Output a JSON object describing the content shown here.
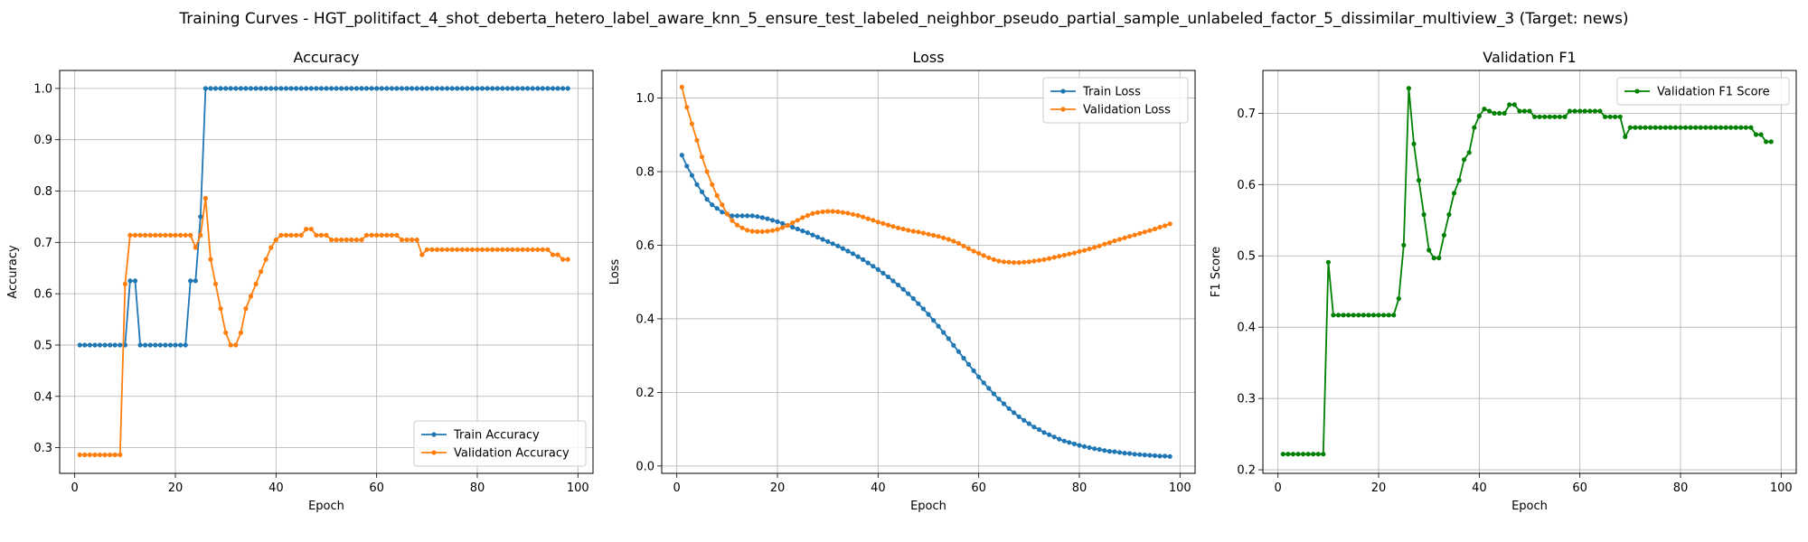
{
  "suptitle": "Training Curves - HGT_politifact_4_shot_deberta_hetero_label_aware_knn_5_ensure_test_labeled_neighbor_pseudo_partial_sample_unlabeled_factor_5_dissimilar_multiview_3 (Target: news)",
  "colors": {
    "train": "#1f77b4",
    "validation": "#ff7f0e",
    "f1": "#008000",
    "grid": "#b0b0b0"
  },
  "chart_data": [
    {
      "type": "line",
      "title": "Accuracy",
      "xlabel": "Epoch",
      "ylabel": "Accuracy",
      "xlim": [
        -3,
        103
      ],
      "ylim": [
        0.25,
        1.035
      ],
      "xticks": [
        0,
        20,
        40,
        60,
        80,
        100
      ],
      "xtick_labels": [
        "0",
        "20",
        "40",
        "60",
        "80",
        "100"
      ],
      "yticks": [
        0.3,
        0.4,
        0.5,
        0.6,
        0.7,
        0.8,
        0.9,
        1.0
      ],
      "ytick_labels": [
        "0.3",
        "0.4",
        "0.5",
        "0.6",
        "0.7",
        "0.8",
        "0.9",
        "1.0"
      ],
      "grid": true,
      "legend": "lower-right",
      "series": [
        {
          "name": "Train Accuracy",
          "color": "#1f77b4",
          "x_start": 1,
          "values": [
            0.5,
            0.5,
            0.5,
            0.5,
            0.5,
            0.5,
            0.5,
            0.5,
            0.5,
            0.5,
            0.625,
            0.625,
            0.5,
            0.5,
            0.5,
            0.5,
            0.5,
            0.5,
            0.5,
            0.5,
            0.5,
            0.5,
            0.625,
            0.625,
            0.75,
            1.0,
            1.0,
            1.0,
            1.0,
            1.0,
            1.0,
            1.0,
            1.0,
            1.0,
            1.0,
            1.0,
            1.0,
            1.0,
            1.0,
            1.0,
            1.0,
            1.0,
            1.0,
            1.0,
            1.0,
            1.0,
            1.0,
            1.0,
            1.0,
            1.0,
            1.0,
            1.0,
            1.0,
            1.0,
            1.0,
            1.0,
            1.0,
            1.0,
            1.0,
            1.0,
            1.0,
            1.0,
            1.0,
            1.0,
            1.0,
            1.0,
            1.0,
            1.0,
            1.0,
            1.0,
            1.0,
            1.0,
            1.0,
            1.0,
            1.0,
            1.0,
            1.0,
            1.0,
            1.0,
            1.0,
            1.0,
            1.0,
            1.0,
            1.0,
            1.0,
            1.0,
            1.0,
            1.0,
            1.0,
            1.0,
            1.0,
            1.0,
            1.0,
            1.0,
            1.0,
            1.0,
            1.0,
            1.0
          ]
        },
        {
          "name": "Validation Accuracy",
          "color": "#ff7f0e",
          "x_start": 1,
          "values": [
            0.286,
            0.286,
            0.286,
            0.286,
            0.286,
            0.286,
            0.286,
            0.286,
            0.286,
            0.619,
            0.714,
            0.714,
            0.714,
            0.714,
            0.714,
            0.714,
            0.714,
            0.714,
            0.714,
            0.714,
            0.714,
            0.714,
            0.714,
            0.69,
            0.714,
            0.786,
            0.667,
            0.619,
            0.571,
            0.524,
            0.5,
            0.5,
            0.524,
            0.571,
            0.595,
            0.619,
            0.643,
            0.667,
            0.69,
            0.705,
            0.714,
            0.714,
            0.714,
            0.714,
            0.714,
            0.726,
            0.726,
            0.714,
            0.714,
            0.714,
            0.705,
            0.705,
            0.705,
            0.705,
            0.705,
            0.705,
            0.705,
            0.714,
            0.714,
            0.714,
            0.714,
            0.714,
            0.714,
            0.714,
            0.705,
            0.705,
            0.705,
            0.705,
            0.676,
            0.686,
            0.686,
            0.686,
            0.686,
            0.686,
            0.686,
            0.686,
            0.686,
            0.686,
            0.686,
            0.686,
            0.686,
            0.686,
            0.686,
            0.686,
            0.686,
            0.686,
            0.686,
            0.686,
            0.686,
            0.686,
            0.686,
            0.686,
            0.686,
            0.686,
            0.676,
            0.676,
            0.667,
            0.667
          ]
        }
      ]
    },
    {
      "type": "line",
      "title": "Loss",
      "xlabel": "Epoch",
      "ylabel": "Loss",
      "xlim": [
        -3,
        103
      ],
      "ylim": [
        -0.02,
        1.075
      ],
      "xticks": [
        0,
        20,
        40,
        60,
        80,
        100
      ],
      "xtick_labels": [
        "0",
        "20",
        "40",
        "60",
        "80",
        "100"
      ],
      "yticks": [
        0.0,
        0.2,
        0.4,
        0.6,
        0.8,
        1.0
      ],
      "ytick_labels": [
        "0.0",
        "0.2",
        "0.4",
        "0.6",
        "0.8",
        "1.0"
      ],
      "grid": true,
      "legend": "top-right",
      "series": [
        {
          "name": "Train Loss",
          "color": "#1f77b4",
          "x_start": 1,
          "values": [
            0.845,
            0.815,
            0.79,
            0.765,
            0.745,
            0.725,
            0.71,
            0.7,
            0.69,
            0.685,
            0.68,
            0.68,
            0.68,
            0.68,
            0.68,
            0.678,
            0.675,
            0.672,
            0.668,
            0.664,
            0.659,
            0.654,
            0.649,
            0.644,
            0.639,
            0.634,
            0.628,
            0.622,
            0.616,
            0.61,
            0.604,
            0.598,
            0.591,
            0.584,
            0.577,
            0.569,
            0.561,
            0.552,
            0.543,
            0.534,
            0.524,
            0.514,
            0.503,
            0.492,
            0.48,
            0.468,
            0.455,
            0.441,
            0.427,
            0.412,
            0.396,
            0.38,
            0.363,
            0.346,
            0.328,
            0.311,
            0.293,
            0.276,
            0.259,
            0.242,
            0.226,
            0.211,
            0.196,
            0.182,
            0.169,
            0.156,
            0.145,
            0.134,
            0.124,
            0.115,
            0.106,
            0.099,
            0.091,
            0.085,
            0.079,
            0.073,
            0.068,
            0.064,
            0.06,
            0.056,
            0.053,
            0.05,
            0.047,
            0.045,
            0.042,
            0.04,
            0.039,
            0.037,
            0.035,
            0.034,
            0.032,
            0.031,
            0.03,
            0.029,
            0.028,
            0.027,
            0.027,
            0.026
          ]
        },
        {
          "name": "Validation Loss",
          "color": "#ff7f0e",
          "x_start": 1,
          "values": [
            1.03,
            0.975,
            0.93,
            0.885,
            0.84,
            0.8,
            0.765,
            0.735,
            0.71,
            0.685,
            0.667,
            0.655,
            0.647,
            0.641,
            0.638,
            0.637,
            0.637,
            0.638,
            0.64,
            0.643,
            0.648,
            0.654,
            0.661,
            0.668,
            0.675,
            0.681,
            0.686,
            0.689,
            0.691,
            0.692,
            0.692,
            0.691,
            0.689,
            0.687,
            0.684,
            0.681,
            0.677,
            0.672,
            0.668,
            0.663,
            0.659,
            0.655,
            0.651,
            0.647,
            0.644,
            0.641,
            0.638,
            0.636,
            0.633,
            0.63,
            0.627,
            0.624,
            0.62,
            0.616,
            0.611,
            0.605,
            0.598,
            0.591,
            0.584,
            0.578,
            0.572,
            0.566,
            0.561,
            0.557,
            0.555,
            0.554,
            0.553,
            0.553,
            0.554,
            0.555,
            0.557,
            0.559,
            0.561,
            0.564,
            0.567,
            0.57,
            0.573,
            0.576,
            0.579,
            0.583,
            0.586,
            0.59,
            0.594,
            0.598,
            0.603,
            0.607,
            0.612,
            0.616,
            0.62,
            0.624,
            0.628,
            0.632,
            0.636,
            0.64,
            0.644,
            0.649,
            0.653,
            0.658
          ]
        }
      ]
    },
    {
      "type": "line",
      "title": "Validation F1",
      "xlabel": "Epoch",
      "ylabel": "F1 Score",
      "xlim": [
        -3,
        103
      ],
      "ylim": [
        0.195,
        0.76
      ],
      "xticks": [
        0,
        20,
        40,
        60,
        80,
        100
      ],
      "xtick_labels": [
        "0",
        "20",
        "40",
        "60",
        "80",
        "100"
      ],
      "yticks": [
        0.2,
        0.3,
        0.4,
        0.5,
        0.6,
        0.7
      ],
      "ytick_labels": [
        "0.2",
        "0.3",
        "0.4",
        "0.5",
        "0.6",
        "0.7"
      ],
      "grid": true,
      "legend": "top-right",
      "series": [
        {
          "name": "Validation F1 Score",
          "color": "#008000",
          "x_start": 1,
          "values": [
            0.222,
            0.222,
            0.222,
            0.222,
            0.222,
            0.222,
            0.222,
            0.222,
            0.222,
            0.491,
            0.417,
            0.417,
            0.417,
            0.417,
            0.417,
            0.417,
            0.417,
            0.417,
            0.417,
            0.417,
            0.417,
            0.417,
            0.417,
            0.44,
            0.515,
            0.735,
            0.657,
            0.606,
            0.558,
            0.508,
            0.497,
            0.497,
            0.529,
            0.558,
            0.588,
            0.606,
            0.635,
            0.645,
            0.68,
            0.696,
            0.706,
            0.703,
            0.7,
            0.7,
            0.7,
            0.712,
            0.712,
            0.703,
            0.703,
            0.703,
            0.695,
            0.695,
            0.695,
            0.695,
            0.695,
            0.695,
            0.695,
            0.703,
            0.703,
            0.703,
            0.703,
            0.703,
            0.703,
            0.703,
            0.695,
            0.695,
            0.695,
            0.695,
            0.667,
            0.68,
            0.68,
            0.68,
            0.68,
            0.68,
            0.68,
            0.68,
            0.68,
            0.68,
            0.68,
            0.68,
            0.68,
            0.68,
            0.68,
            0.68,
            0.68,
            0.68,
            0.68,
            0.68,
            0.68,
            0.68,
            0.68,
            0.68,
            0.68,
            0.68,
            0.67,
            0.67,
            0.66,
            0.66
          ]
        }
      ]
    }
  ]
}
